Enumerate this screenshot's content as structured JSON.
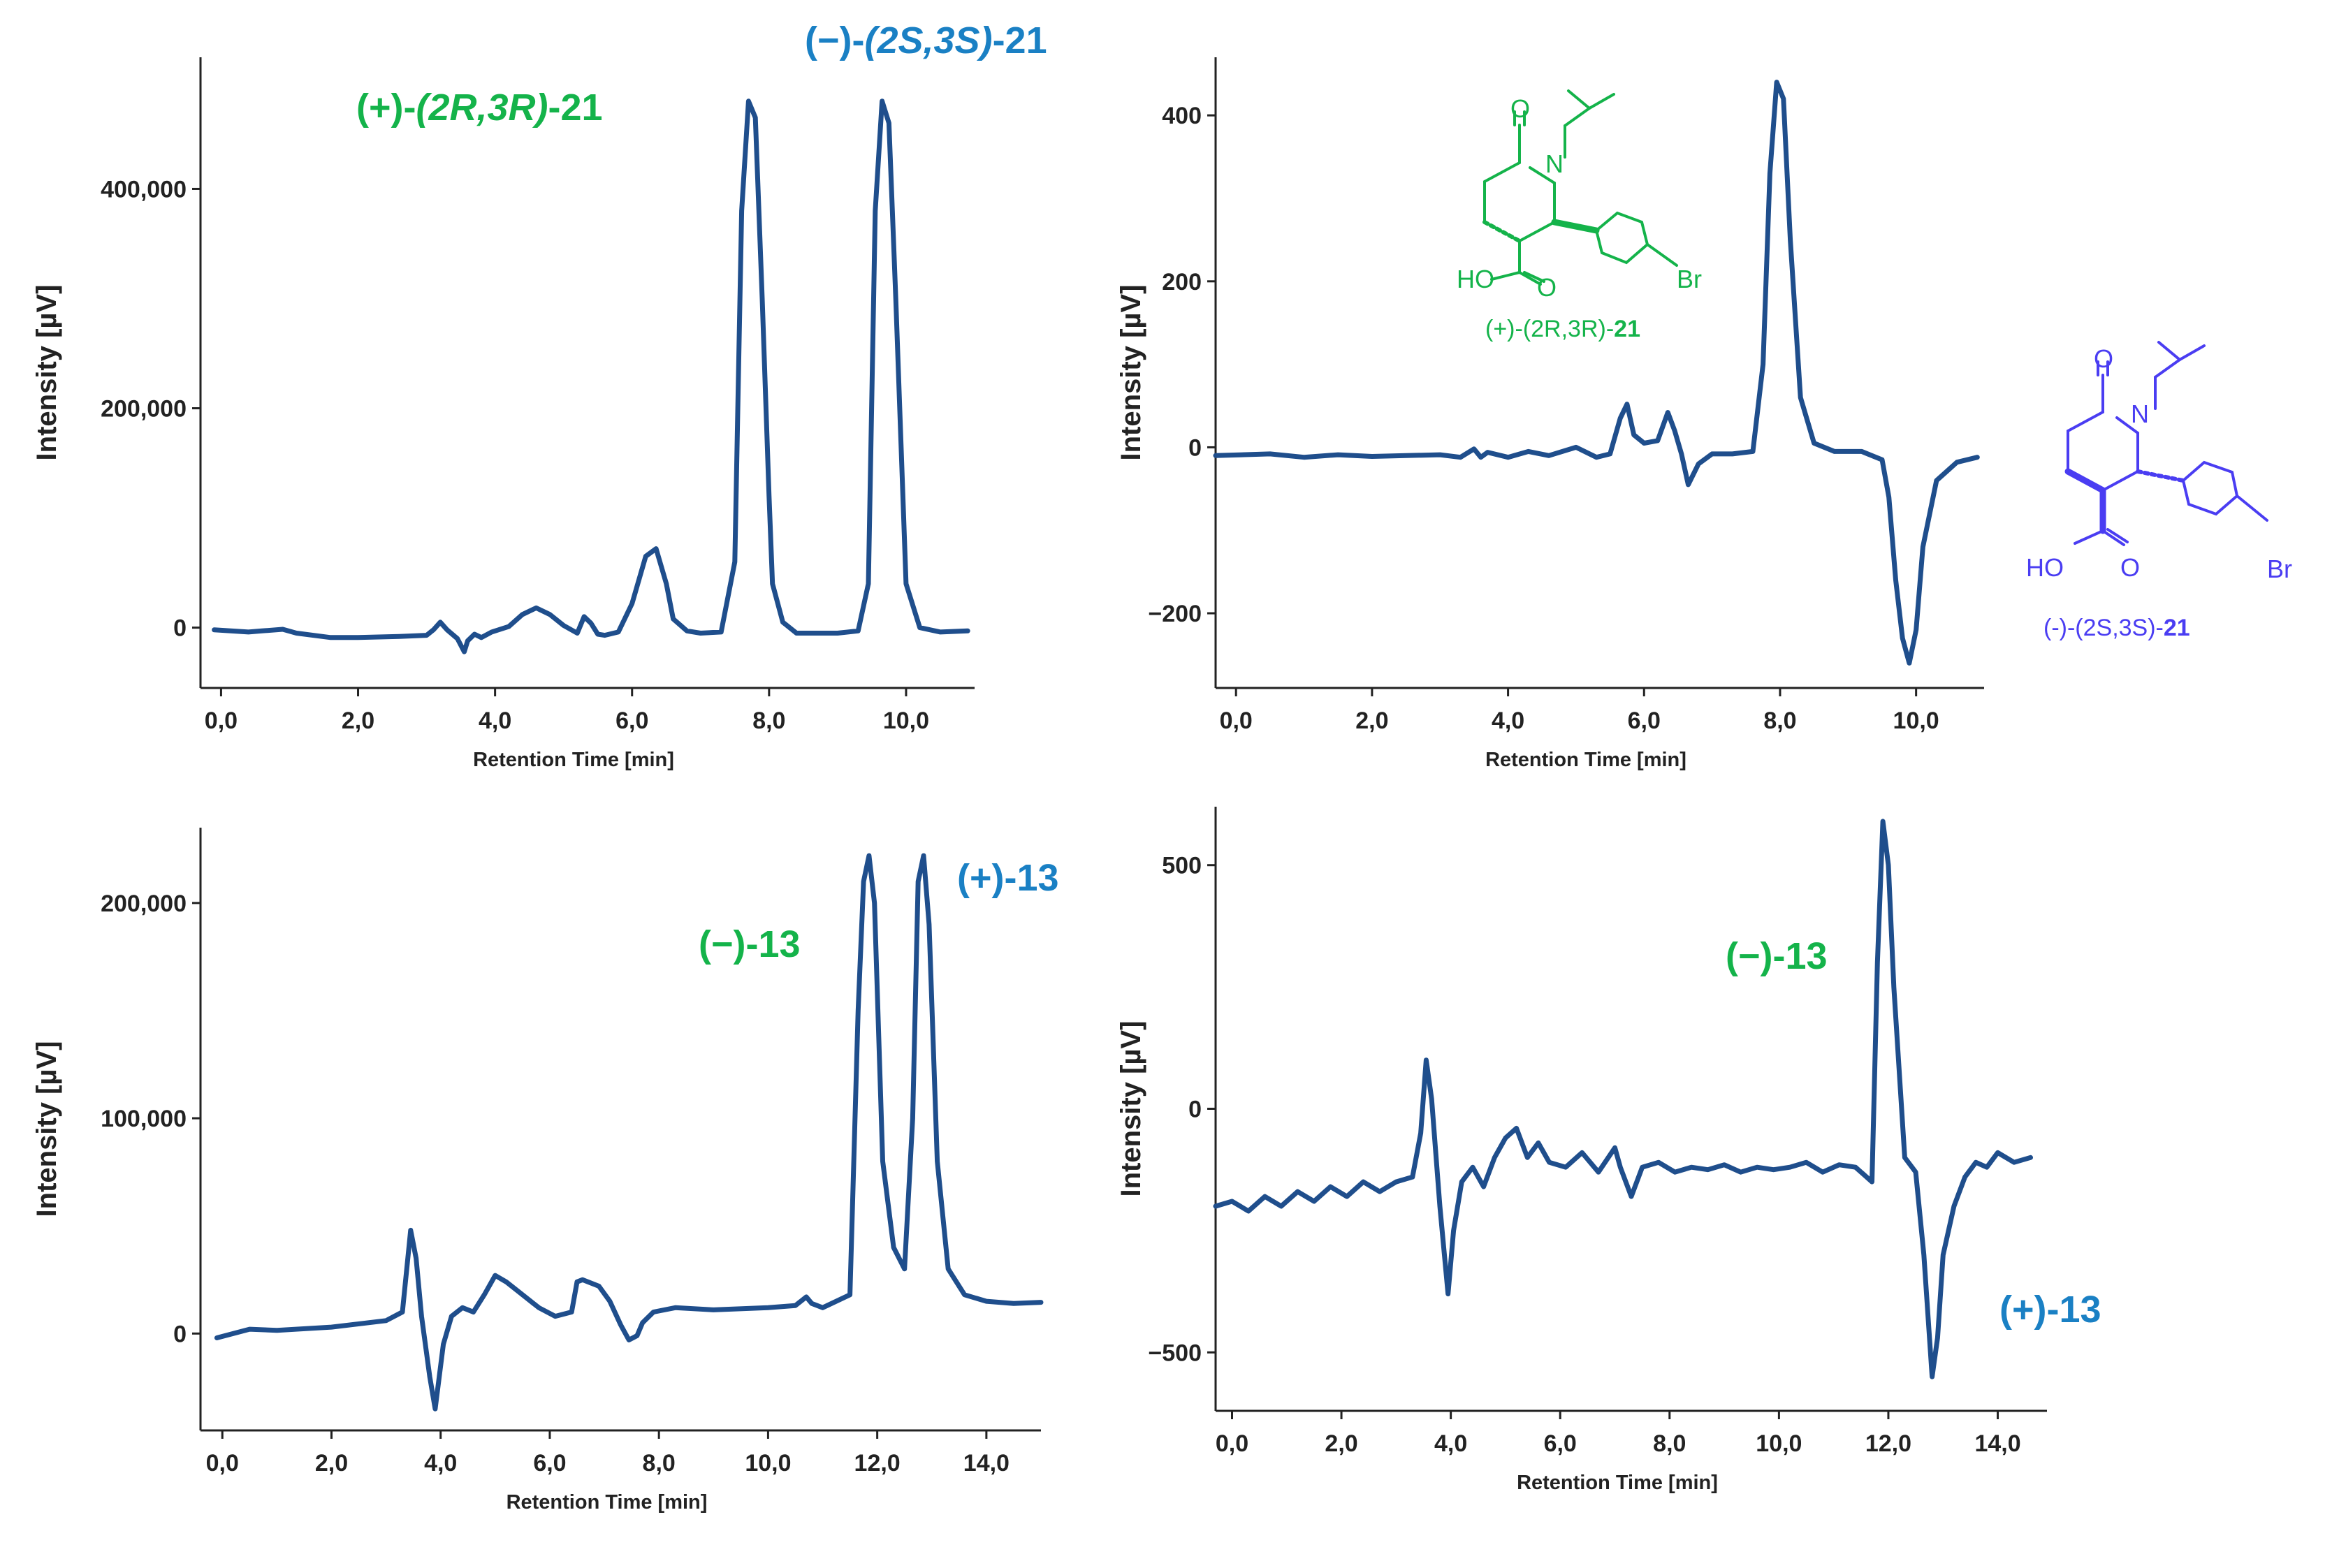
{
  "figure": {
    "colors": {
      "trace": "#1f4e8c",
      "axis": "#222222",
      "green": "#14b34a",
      "blue": "#1a80c4",
      "violet": "#4a3df2"
    }
  },
  "chart_data": [
    {
      "type": "line",
      "panel": "top-left",
      "xlabel": "Retention Time [min]",
      "ylabel": "Intensity [µV]",
      "xlim": [
        -0.3,
        11.0
      ],
      "ylim": [
        -55000,
        520000
      ],
      "xticks": [
        0,
        2,
        4,
        6,
        8,
        10
      ],
      "xtick_labels": [
        "0,0",
        "2,0",
        "4,0",
        "6,0",
        "8,0",
        "10,0"
      ],
      "yticks": [
        0,
        200000,
        400000
      ],
      "ytick_labels": [
        "0",
        "200,000",
        "400,000"
      ],
      "grid": false,
      "series": [
        {
          "x": [
            -0.1,
            0.4,
            0.6,
            0.9,
            1.1,
            1.6,
            2.0,
            2.6,
            3.0,
            3.1,
            3.2,
            3.3,
            3.45,
            3.55,
            3.6,
            3.7,
            3.8,
            3.95,
            4.2,
            4.4,
            4.6,
            4.8,
            5.0,
            5.2,
            5.3,
            5.4,
            5.5,
            5.6,
            5.8,
            6.0,
            6.2,
            6.35,
            6.5,
            6.6,
            6.8,
            7.0,
            7.3,
            7.5,
            7.6,
            7.7,
            7.8,
            7.9,
            8.0,
            8.05,
            8.2,
            8.4,
            8.7,
            9.0,
            9.3,
            9.45,
            9.55,
            9.65,
            9.75,
            9.85,
            10.0,
            10.2,
            10.5,
            10.9
          ],
          "y": [
            -2000,
            -4000,
            -3000,
            -1500,
            -5000,
            -9000,
            -9000,
            -8000,
            -7000,
            -2000,
            5000,
            -2000,
            -10000,
            -22000,
            -12000,
            -6000,
            -9000,
            -4000,
            1000,
            12000,
            18000,
            12000,
            2000,
            -5000,
            10000,
            4000,
            -6000,
            -7000,
            -4000,
            22000,
            65000,
            72000,
            40000,
            8000,
            -3000,
            -5000,
            -4000,
            60000,
            380000,
            480000,
            465000,
            300000,
            120000,
            40000,
            5000,
            -5000,
            -5000,
            -5000,
            -3000,
            40000,
            380000,
            480000,
            460000,
            300000,
            40000,
            0,
            -4000,
            -3000
          ]
        }
      ]
    },
    {
      "type": "line",
      "panel": "top-right",
      "xlabel": "Retention Time [min]",
      "ylabel": "Intensity [µV]",
      "xlim": [
        -0.3,
        11.0
      ],
      "ylim": [
        -290,
        470
      ],
      "xticks": [
        0,
        2,
        4,
        6,
        8,
        10
      ],
      "xtick_labels": [
        "0,0",
        "2,0",
        "4,0",
        "6,0",
        "8,0",
        "10,0"
      ],
      "yticks": [
        -200,
        0,
        200,
        400
      ],
      "ytick_labels": [
        "−200",
        "0",
        "200",
        "400"
      ],
      "grid": false,
      "series": [
        {
          "x": [
            -0.3,
            0.5,
            1.0,
            1.5,
            2.0,
            2.5,
            3.0,
            3.3,
            3.5,
            3.6,
            3.7,
            4.0,
            4.3,
            4.6,
            5.0,
            5.3,
            5.5,
            5.65,
            5.75,
            5.85,
            6.0,
            6.2,
            6.35,
            6.45,
            6.55,
            6.65,
            6.8,
            7.0,
            7.3,
            7.6,
            7.75,
            7.85,
            7.95,
            8.05,
            8.15,
            8.3,
            8.5,
            8.8,
            9.2,
            9.5,
            9.6,
            9.7,
            9.8,
            9.9,
            10.0,
            10.1,
            10.3,
            10.6,
            10.9
          ],
          "y": [
            -10,
            -8,
            -12,
            -9,
            -11,
            -10,
            -9,
            -12,
            -2,
            -12,
            -6,
            -12,
            -5,
            -10,
            0,
            -12,
            -8,
            35,
            52,
            15,
            5,
            8,
            42,
            20,
            -8,
            -45,
            -20,
            -8,
            -8,
            -5,
            100,
            330,
            440,
            420,
            250,
            60,
            5,
            -5,
            -5,
            -15,
            -60,
            -160,
            -230,
            -260,
            -220,
            -120,
            -40,
            -18,
            -12
          ]
        }
      ]
    },
    {
      "type": "line",
      "panel": "bottom-left",
      "xlabel": "Retention Time [min]",
      "ylabel": "Intensity [µV]",
      "xlim": [
        -0.4,
        15.0
      ],
      "ylim": [
        -45000,
        235000
      ],
      "xticks": [
        0,
        2,
        4,
        6,
        8,
        10,
        12,
        14
      ],
      "xtick_labels": [
        "0,0",
        "2,0",
        "4,0",
        "6,0",
        "8,0",
        "10,0",
        "12,0",
        "14,0"
      ],
      "yticks": [
        0,
        100000,
        200000
      ],
      "ytick_labels": [
        "0",
        "100,000",
        "200,000"
      ],
      "grid": false,
      "series": [
        {
          "x": [
            -0.1,
            0.5,
            1.0,
            2.0,
            3.0,
            3.3,
            3.45,
            3.55,
            3.65,
            3.8,
            3.9,
            4.05,
            4.2,
            4.4,
            4.6,
            4.8,
            5.0,
            5.2,
            5.5,
            5.8,
            6.1,
            6.4,
            6.5,
            6.6,
            6.9,
            7.1,
            7.3,
            7.45,
            7.6,
            7.7,
            7.9,
            8.3,
            9.0,
            10.0,
            10.5,
            10.7,
            10.8,
            11.0,
            11.5,
            11.65,
            11.75,
            11.85,
            11.95,
            12.1,
            12.3,
            12.5,
            12.65,
            12.75,
            12.85,
            12.95,
            13.1,
            13.3,
            13.6,
            14.0,
            14.5,
            15.0
          ],
          "y": [
            -2000,
            2000,
            1500,
            3000,
            6000,
            10000,
            48000,
            35000,
            8000,
            -20000,
            -35000,
            -5000,
            8000,
            12000,
            10000,
            18000,
            27000,
            24000,
            18000,
            12000,
            8000,
            10000,
            24000,
            25000,
            22000,
            15000,
            4000,
            -3000,
            -1000,
            5000,
            10000,
            12000,
            11000,
            12000,
            13000,
            17000,
            14000,
            12000,
            18000,
            150000,
            210000,
            222000,
            200000,
            80000,
            40000,
            30000,
            100000,
            210000,
            222000,
            190000,
            80000,
            30000,
            18000,
            15000,
            14000,
            14500
          ]
        }
      ]
    },
    {
      "type": "line",
      "panel": "bottom-right",
      "xlabel": "Retention Time [min]",
      "ylabel": "Intensity [µV]",
      "xlim": [
        -0.3,
        14.9
      ],
      "ylim": [
        -620,
        620
      ],
      "xticks": [
        0,
        2,
        4,
        6,
        8,
        10,
        12,
        14
      ],
      "xtick_labels": [
        "0,0",
        "2,0",
        "4,0",
        "6,0",
        "8,0",
        "10,0",
        "12,0",
        "14,0"
      ],
      "yticks": [
        -500,
        0,
        500
      ],
      "ytick_labels": [
        "−500",
        "0",
        "500"
      ],
      "grid": false,
      "series": [
        {
          "x": [
            -0.3,
            0.0,
            0.3,
            0.6,
            0.9,
            1.2,
            1.5,
            1.8,
            2.1,
            2.4,
            2.7,
            3.0,
            3.3,
            3.45,
            3.55,
            3.65,
            3.8,
            3.95,
            4.05,
            4.2,
            4.4,
            4.6,
            4.8,
            5.0,
            5.2,
            5.4,
            5.6,
            5.8,
            6.1,
            6.4,
            6.7,
            7.0,
            7.1,
            7.3,
            7.5,
            7.8,
            8.1,
            8.4,
            8.7,
            9.0,
            9.3,
            9.6,
            9.9,
            10.2,
            10.5,
            10.8,
            11.1,
            11.4,
            11.7,
            11.8,
            11.9,
            12.0,
            12.1,
            12.3,
            12.5,
            12.65,
            12.8,
            12.9,
            13.0,
            13.2,
            13.4,
            13.6,
            13.8,
            14.0,
            14.3,
            14.6
          ],
          "y": [
            -200,
            -190,
            -210,
            -180,
            -200,
            -170,
            -190,
            -160,
            -180,
            -150,
            -170,
            -150,
            -140,
            -50,
            100,
            20,
            -200,
            -380,
            -250,
            -150,
            -120,
            -160,
            -100,
            -60,
            -40,
            -100,
            -70,
            -110,
            -120,
            -90,
            -130,
            -80,
            -120,
            -180,
            -120,
            -110,
            -130,
            -120,
            -125,
            -115,
            -130,
            -120,
            -125,
            -120,
            -110,
            -130,
            -115,
            -120,
            -150,
            300,
            590,
            500,
            250,
            -100,
            -130,
            -300,
            -550,
            -470,
            -300,
            -200,
            -140,
            -110,
            -120,
            -90,
            -110,
            -100
          ]
        }
      ]
    }
  ],
  "annotations": {
    "tl_label_a_prefix": "(+)-",
    "tl_label_a_italic": "(2R,3R)",
    "tl_label_a_mid": "-",
    "tl_label_a_num": "21",
    "tl_label_b_prefix": "(−)-",
    "tl_label_b_italic": "(2S,3S)",
    "tl_label_b_mid": "-",
    "tl_label_b_num": "21",
    "bl_label_a": "(−)-13",
    "bl_label_b": "(+)-13",
    "br_label_a": "(−)-13",
    "br_label_b": "(+)-13"
  },
  "structures": {
    "green": {
      "label_prefix": "(+)-(2R,3R)-",
      "label_num": "21",
      "atom_o": "O",
      "atom_n": "N",
      "atom_ho": "HO",
      "atom_br": "Br"
    },
    "violet": {
      "label_prefix": "(-)-(2S,3S)-",
      "label_num": "21",
      "atom_o": "O",
      "atom_n": "N",
      "atom_ho": "HO",
      "atom_br": "Br"
    }
  }
}
